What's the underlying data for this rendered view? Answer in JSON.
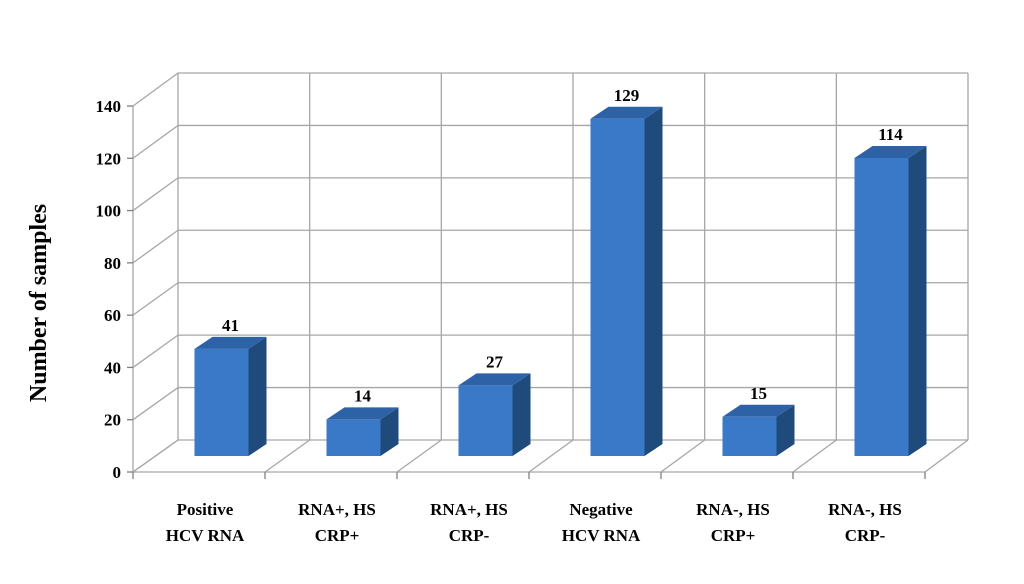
{
  "chart_data": {
    "type": "bar",
    "title": "",
    "xlabel": "",
    "ylabel": "Number of samples",
    "ylim": [
      0,
      140
    ],
    "yticks": [
      0,
      20,
      40,
      60,
      80,
      100,
      120,
      140
    ],
    "grid": true,
    "three_d": true,
    "categories": [
      [
        "Positive",
        "HCV RNA"
      ],
      [
        "RNA+, HS",
        "CRP+"
      ],
      [
        "RNA+, HS",
        "CRP-"
      ],
      [
        "Negative",
        "HCV RNA"
      ],
      [
        "RNA-, HS",
        "CRP+"
      ],
      [
        "RNA-, HS",
        "CRP-"
      ]
    ],
    "values": [
      41,
      14,
      27,
      129,
      15,
      114
    ],
    "data_labels": [
      "41",
      "14",
      "27",
      "129",
      "15",
      "114"
    ],
    "colors": {
      "bar_front": "#3a78c8",
      "bar_side": "#1f4a7c",
      "bar_top": "#2e62a6",
      "grid": "#a6a6a6"
    }
  }
}
